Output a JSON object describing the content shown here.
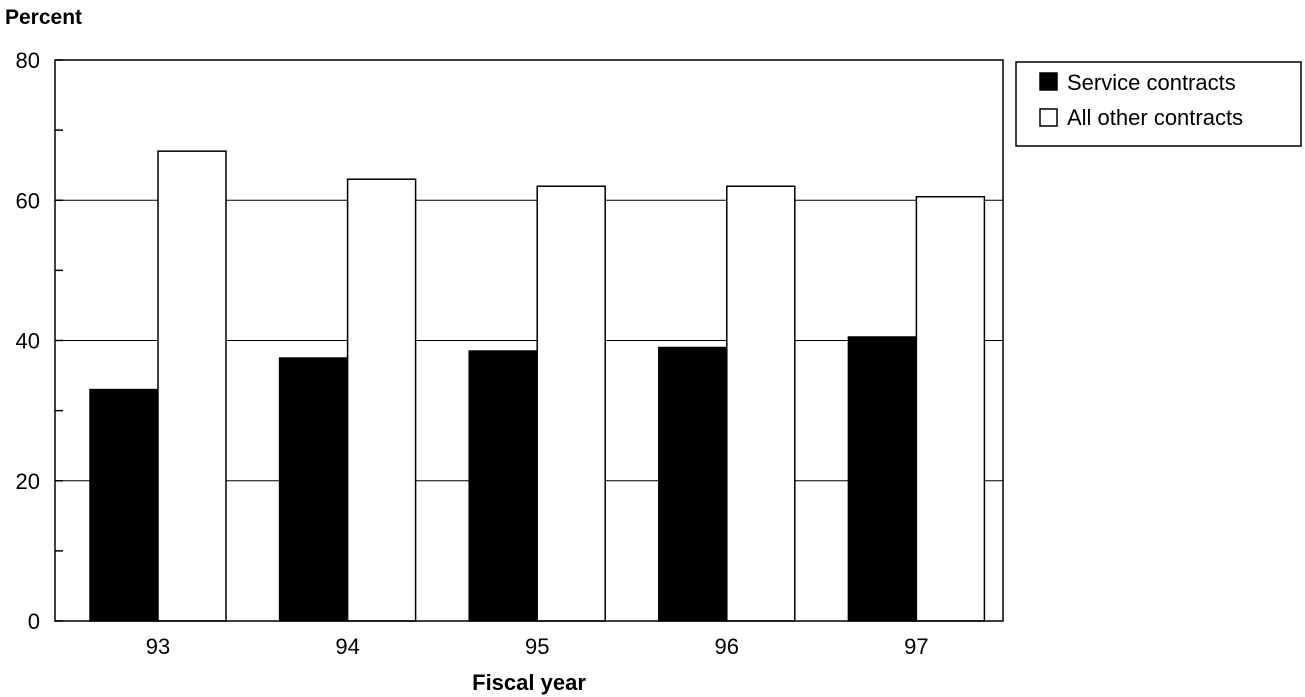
{
  "chart_data": {
    "type": "bar",
    "ylabel": "Percent",
    "xlabel": "Fiscal year",
    "categories": [
      "93",
      "94",
      "95",
      "96",
      "97"
    ],
    "series": [
      {
        "name": "Service contracts",
        "color": "#000000",
        "values": [
          33,
          37.5,
          38.5,
          39,
          40.5
        ]
      },
      {
        "name": "All other contracts",
        "color": "#ffffff",
        "values": [
          67,
          63,
          62,
          62,
          60.5
        ]
      }
    ],
    "ylim": [
      0,
      80
    ],
    "yticks": [
      "0",
      "20",
      "40",
      "60",
      "80"
    ],
    "grid": true,
    "legend": "top-right"
  }
}
